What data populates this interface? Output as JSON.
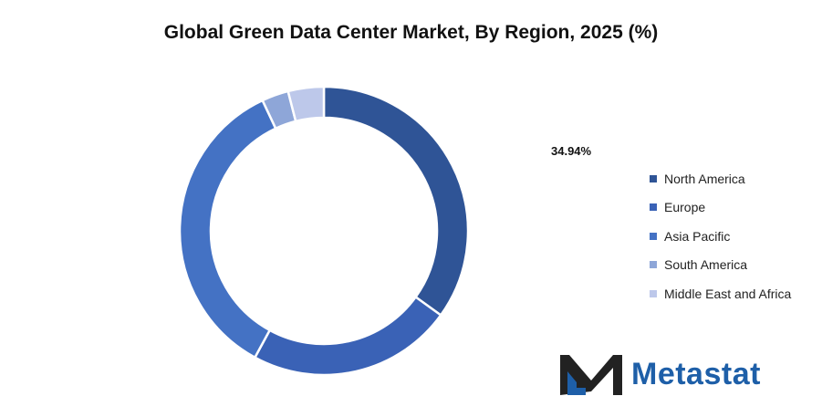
{
  "chart_data": {
    "type": "pie",
    "title": "Global Green Data Center Market, By Region, 2025 (%)",
    "categories": [
      "North America",
      "Europe",
      "Asia Pacific",
      "South America",
      "Middle East and Africa"
    ],
    "values": [
      34.94,
      23.0,
      35.06,
      3.0,
      4.0
    ],
    "annotations": [
      {
        "text": "34.94%",
        "target": "North America"
      }
    ],
    "colors": [
      "#2f5496",
      "#3a62b6",
      "#4472c4",
      "#8ea6d8",
      "#bdc8ea"
    ],
    "legend_position": "right"
  },
  "brand": {
    "name": "Metastat",
    "logo_icon": "metastat-m-logo-icon",
    "color": "#1e5fa8"
  }
}
